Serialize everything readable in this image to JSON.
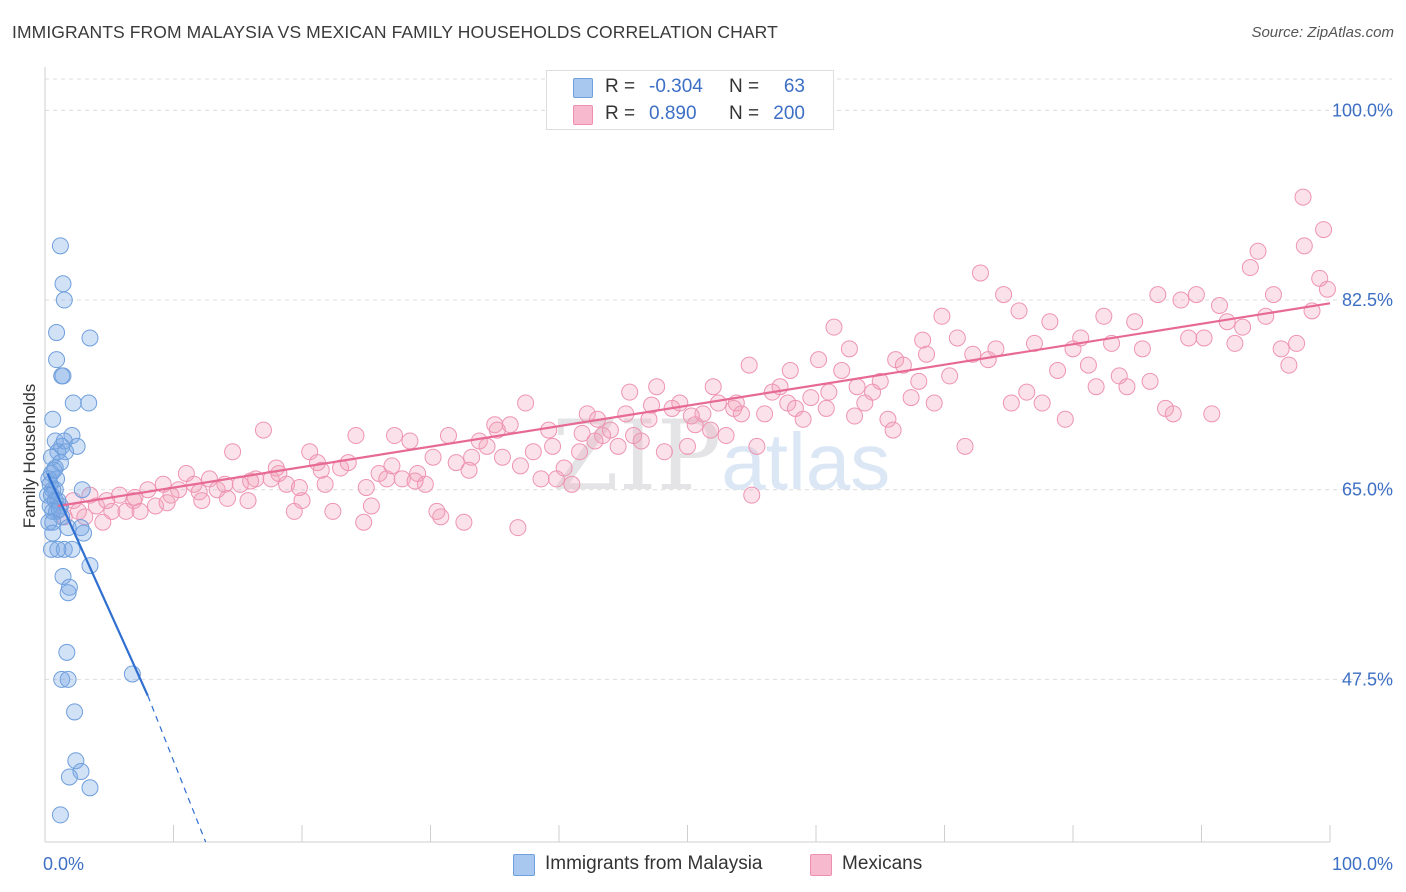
{
  "header": {
    "title": "IMMIGRANTS FROM MALAYSIA VS MEXICAN FAMILY HOUSEHOLDS CORRELATION CHART",
    "source": "Source: ZipAtlas.com"
  },
  "watermark": {
    "zip": "ZIP",
    "atlas": "atlas"
  },
  "legend": {
    "rows": [
      {
        "r_label": "R =",
        "r_value": "-0.304",
        "n_label": "N =",
        "n_value": "63",
        "color": "#a9c8f0",
        "border": "#6f9fdc"
      },
      {
        "r_label": "R =",
        "r_value": "0.890",
        "n_label": "N =",
        "n_value": "200",
        "color": "#f6b9cd",
        "border": "#ee8fae"
      }
    ]
  },
  "bottom_legend": {
    "items": [
      {
        "label": "Immigrants from Malaysia",
        "color": "#a9c8f0",
        "border": "#6f9fdc"
      },
      {
        "label": "Mexicans",
        "color": "#f6b9cd",
        "border": "#ee8fae"
      }
    ]
  },
  "colors": {
    "blue_fill": "rgba(122,168,230,0.35)",
    "blue_stroke": "#6f9fdc",
    "blue_line": "#2f6fd0",
    "pink_fill": "rgba(243,160,187,0.30)",
    "pink_stroke": "#ee94b2",
    "pink_line": "#e66a93",
    "grid": "#dcdcdc",
    "tick_label": "#3d6fc4"
  },
  "chart_data": {
    "type": "scatter",
    "title": "IMMIGRANTS FROM MALAYSIA VS MEXICAN FAMILY HOUSEHOLDS CORRELATION CHART",
    "xlabel": "",
    "ylabel": "Family Households",
    "xlim": [
      0,
      100
    ],
    "ylim": [
      32.5,
      104
    ],
    "x_tick_labels": {
      "left": "0.0%",
      "right": "100.0%"
    },
    "y_ticks": [
      {
        "value": 100.0,
        "label": "100.0%"
      },
      {
        "value": 82.5,
        "label": "82.5%"
      },
      {
        "value": 65.0,
        "label": "65.0%"
      },
      {
        "value": 47.5,
        "label": "47.5%"
      }
    ],
    "series": [
      {
        "name": "Immigrants from Malaysia",
        "r": -0.304,
        "n": 63,
        "trend": {
          "x0": 0.2,
          "y0": 66.5,
          "x1": 8.0,
          "y1": 46.0,
          "dash_to_x": 12.5,
          "dash_to_y": 32.5
        },
        "points": [
          [
            1.2,
            87.5
          ],
          [
            1.4,
            84.0
          ],
          [
            1.5,
            82.5
          ],
          [
            0.9,
            79.5
          ],
          [
            3.5,
            79.0
          ],
          [
            0.9,
            77.0
          ],
          [
            1.3,
            75.5
          ],
          [
            1.4,
            75.5
          ],
          [
            2.2,
            73.0
          ],
          [
            3.4,
            73.0
          ],
          [
            0.6,
            71.5
          ],
          [
            0.8,
            69.5
          ],
          [
            2.1,
            70.0
          ],
          [
            1.3,
            69.0
          ],
          [
            1.5,
            69.5
          ],
          [
            2.5,
            69.0
          ],
          [
            1.0,
            68.5
          ],
          [
            1.6,
            68.5
          ],
          [
            0.5,
            68.0
          ],
          [
            1.2,
            67.5
          ],
          [
            0.8,
            67.0
          ],
          [
            0.5,
            66.5
          ],
          [
            0.3,
            66.0
          ],
          [
            0.9,
            66.0
          ],
          [
            0.4,
            65.5
          ],
          [
            0.6,
            65.0
          ],
          [
            0.8,
            65.0
          ],
          [
            2.9,
            65.0
          ],
          [
            0.2,
            64.5
          ],
          [
            0.5,
            64.5
          ],
          [
            0.8,
            64.0
          ],
          [
            1.0,
            64.0
          ],
          [
            1.2,
            63.5
          ],
          [
            0.4,
            63.5
          ],
          [
            0.6,
            63.0
          ],
          [
            0.9,
            63.0
          ],
          [
            1.3,
            62.5
          ],
          [
            0.3,
            62.0
          ],
          [
            0.6,
            62.0
          ],
          [
            1.8,
            61.5
          ],
          [
            2.8,
            61.5
          ],
          [
            0.6,
            61.0
          ],
          [
            3.0,
            61.0
          ],
          [
            0.5,
            59.5
          ],
          [
            1.5,
            59.5
          ],
          [
            2.1,
            59.5
          ],
          [
            1.0,
            59.5
          ],
          [
            3.5,
            58.0
          ],
          [
            1.4,
            57.0
          ],
          [
            1.9,
            56.0
          ],
          [
            1.8,
            55.5
          ],
          [
            1.7,
            50.0
          ],
          [
            6.8,
            48.0
          ],
          [
            1.3,
            47.5
          ],
          [
            1.8,
            47.5
          ],
          [
            2.3,
            44.5
          ],
          [
            2.4,
            40.0
          ],
          [
            2.8,
            39.0
          ],
          [
            1.9,
            38.5
          ],
          [
            3.5,
            37.5
          ],
          [
            1.2,
            35.0
          ],
          [
            0.7,
            66.8
          ],
          [
            1.1,
            63.2
          ]
        ]
      },
      {
        "name": "Mexicans",
        "r": 0.89,
        "n": 200,
        "trend": {
          "x0": 1.0,
          "y0": 63.5,
          "x1": 100.0,
          "y1": 82.2
        },
        "points": [
          [
            1.5,
            62.5
          ],
          [
            2.2,
            64.0
          ],
          [
            2.6,
            63.0
          ],
          [
            3.1,
            62.5
          ],
          [
            3.5,
            64.5
          ],
          [
            4.0,
            63.5
          ],
          [
            4.5,
            62.0
          ],
          [
            5.2,
            63.0
          ],
          [
            5.8,
            64.5
          ],
          [
            6.3,
            63.0
          ],
          [
            6.9,
            64.0
          ],
          [
            7.4,
            63.0
          ],
          [
            8.0,
            65.0
          ],
          [
            8.6,
            63.5
          ],
          [
            9.2,
            65.5
          ],
          [
            9.8,
            64.5
          ],
          [
            10.4,
            65.0
          ],
          [
            11.0,
            66.5
          ],
          [
            11.6,
            65.5
          ],
          [
            12.2,
            64.0
          ],
          [
            12.8,
            66.0
          ],
          [
            13.4,
            65.0
          ],
          [
            14.0,
            65.5
          ],
          [
            14.6,
            68.5
          ],
          [
            15.2,
            65.5
          ],
          [
            15.8,
            64.0
          ],
          [
            16.4,
            66.0
          ],
          [
            17.0,
            70.5
          ],
          [
            17.6,
            66.0
          ],
          [
            18.2,
            66.5
          ],
          [
            18.8,
            65.5
          ],
          [
            19.4,
            63.0
          ],
          [
            20.0,
            64.0
          ],
          [
            20.6,
            68.5
          ],
          [
            21.2,
            67.5
          ],
          [
            21.8,
            65.5
          ],
          [
            22.4,
            63.0
          ],
          [
            23.0,
            67.0
          ],
          [
            23.6,
            67.5
          ],
          [
            24.2,
            70.0
          ],
          [
            24.8,
            62.0
          ],
          [
            25.4,
            63.5
          ],
          [
            26.0,
            66.5
          ],
          [
            26.6,
            66.0
          ],
          [
            27.2,
            70.0
          ],
          [
            27.8,
            66.0
          ],
          [
            28.4,
            69.5
          ],
          [
            29.0,
            66.5
          ],
          [
            29.6,
            65.5
          ],
          [
            30.2,
            68.0
          ],
          [
            30.8,
            62.5
          ],
          [
            31.4,
            70.0
          ],
          [
            32.0,
            67.5
          ],
          [
            32.6,
            62.0
          ],
          [
            33.2,
            68.0
          ],
          [
            33.8,
            69.5
          ],
          [
            34.4,
            69.0
          ],
          [
            35.0,
            71.0
          ],
          [
            35.6,
            68.0
          ],
          [
            36.2,
            71.0
          ],
          [
            36.8,
            61.5
          ],
          [
            37.4,
            73.0
          ],
          [
            38.0,
            68.5
          ],
          [
            38.6,
            66.0
          ],
          [
            39.2,
            70.5
          ],
          [
            39.8,
            66.0
          ],
          [
            40.4,
            67.0
          ],
          [
            41.0,
            65.5
          ],
          [
            41.6,
            68.5
          ],
          [
            42.2,
            72.0
          ],
          [
            42.8,
            69.5
          ],
          [
            43.4,
            70.0
          ],
          [
            44.0,
            70.5
          ],
          [
            44.6,
            69.0
          ],
          [
            45.2,
            72.0
          ],
          [
            45.8,
            70.0
          ],
          [
            46.4,
            69.5
          ],
          [
            47.0,
            71.5
          ],
          [
            47.6,
            74.5
          ],
          [
            48.2,
            68.5
          ],
          [
            48.8,
            72.5
          ],
          [
            49.4,
            73.0
          ],
          [
            50.0,
            69.0
          ],
          [
            50.6,
            71.0
          ],
          [
            51.2,
            72.0
          ],
          [
            51.8,
            70.5
          ],
          [
            52.4,
            73.0
          ],
          [
            53.0,
            70.0
          ],
          [
            53.6,
            72.5
          ],
          [
            54.2,
            72.0
          ],
          [
            54.8,
            76.5
          ],
          [
            55.4,
            69.0
          ],
          [
            56.0,
            72.0
          ],
          [
            56.6,
            74.0
          ],
          [
            57.2,
            74.5
          ],
          [
            57.8,
            73.0
          ],
          [
            58.4,
            72.5
          ],
          [
            59.0,
            71.5
          ],
          [
            59.6,
            73.5
          ],
          [
            60.2,
            77.0
          ],
          [
            60.8,
            72.5
          ],
          [
            61.4,
            80.0
          ],
          [
            62.0,
            76.0
          ],
          [
            62.6,
            78.0
          ],
          [
            63.2,
            74.5
          ],
          [
            63.8,
            73.0
          ],
          [
            64.4,
            74.0
          ],
          [
            65.0,
            75.0
          ],
          [
            65.6,
            71.5
          ],
          [
            66.2,
            77.0
          ],
          [
            66.8,
            76.5
          ],
          [
            67.4,
            73.5
          ],
          [
            68.0,
            75.0
          ],
          [
            68.6,
            77.5
          ],
          [
            69.2,
            73.0
          ],
          [
            69.8,
            81.0
          ],
          [
            70.4,
            75.5
          ],
          [
            71.0,
            79.0
          ],
          [
            71.6,
            69.0
          ],
          [
            72.2,
            77.5
          ],
          [
            72.8,
            85.0
          ],
          [
            73.4,
            77.0
          ],
          [
            74.0,
            78.0
          ],
          [
            74.6,
            83.0
          ],
          [
            75.2,
            73.0
          ],
          [
            75.8,
            81.5
          ],
          [
            76.4,
            74.0
          ],
          [
            77.0,
            78.5
          ],
          [
            77.6,
            73.0
          ],
          [
            78.2,
            80.5
          ],
          [
            78.8,
            76.0
          ],
          [
            79.4,
            71.5
          ],
          [
            80.0,
            78.0
          ],
          [
            80.6,
            79.0
          ],
          [
            81.2,
            76.5
          ],
          [
            81.8,
            74.5
          ],
          [
            82.4,
            81.0
          ],
          [
            83.0,
            78.5
          ],
          [
            83.6,
            75.5
          ],
          [
            84.2,
            74.5
          ],
          [
            84.8,
            80.5
          ],
          [
            85.4,
            78.0
          ],
          [
            86.0,
            75.0
          ],
          [
            86.6,
            83.0
          ],
          [
            87.2,
            72.5
          ],
          [
            87.8,
            72.0
          ],
          [
            88.4,
            82.5
          ],
          [
            89.0,
            79.0
          ],
          [
            89.6,
            83.0
          ],
          [
            90.2,
            79.0
          ],
          [
            90.8,
            72.0
          ],
          [
            91.4,
            82.0
          ],
          [
            92.0,
            80.5
          ],
          [
            92.6,
            78.5
          ],
          [
            93.2,
            80.0
          ],
          [
            93.8,
            85.5
          ],
          [
            94.4,
            87.0
          ],
          [
            95.0,
            81.0
          ],
          [
            95.6,
            83.0
          ],
          [
            96.2,
            78.0
          ],
          [
            96.8,
            76.5
          ],
          [
            97.4,
            78.5
          ],
          [
            98.0,
            87.5
          ],
          [
            98.6,
            81.5
          ],
          [
            99.2,
            84.5
          ],
          [
            99.8,
            83.5
          ],
          [
            97.9,
            92.0
          ],
          [
            99.5,
            89.0
          ],
          [
            4.8,
            64.0
          ],
          [
            7.0,
            64.3
          ],
          [
            9.5,
            63.8
          ],
          [
            12.0,
            64.8
          ],
          [
            14.2,
            64.2
          ],
          [
            16.0,
            65.8
          ],
          [
            18.0,
            67.0
          ],
          [
            19.8,
            65.2
          ],
          [
            21.5,
            66.8
          ],
          [
            25.0,
            65.2
          ],
          [
            27.0,
            67.2
          ],
          [
            28.8,
            65.8
          ],
          [
            30.5,
            63.0
          ],
          [
            33.0,
            66.8
          ],
          [
            35.2,
            70.5
          ],
          [
            37.0,
            67.2
          ],
          [
            39.5,
            69.0
          ],
          [
            41.8,
            70.2
          ],
          [
            43.0,
            71.5
          ],
          [
            45.5,
            74.0
          ],
          [
            47.2,
            72.8
          ],
          [
            50.3,
            71.8
          ],
          [
            52.0,
            74.5
          ],
          [
            53.8,
            73.0
          ],
          [
            55.0,
            64.5
          ],
          [
            58.0,
            76.0
          ],
          [
            61.0,
            74.0
          ],
          [
            63.0,
            71.8
          ],
          [
            66.0,
            70.5
          ],
          [
            68.3,
            78.8
          ]
        ]
      }
    ]
  }
}
